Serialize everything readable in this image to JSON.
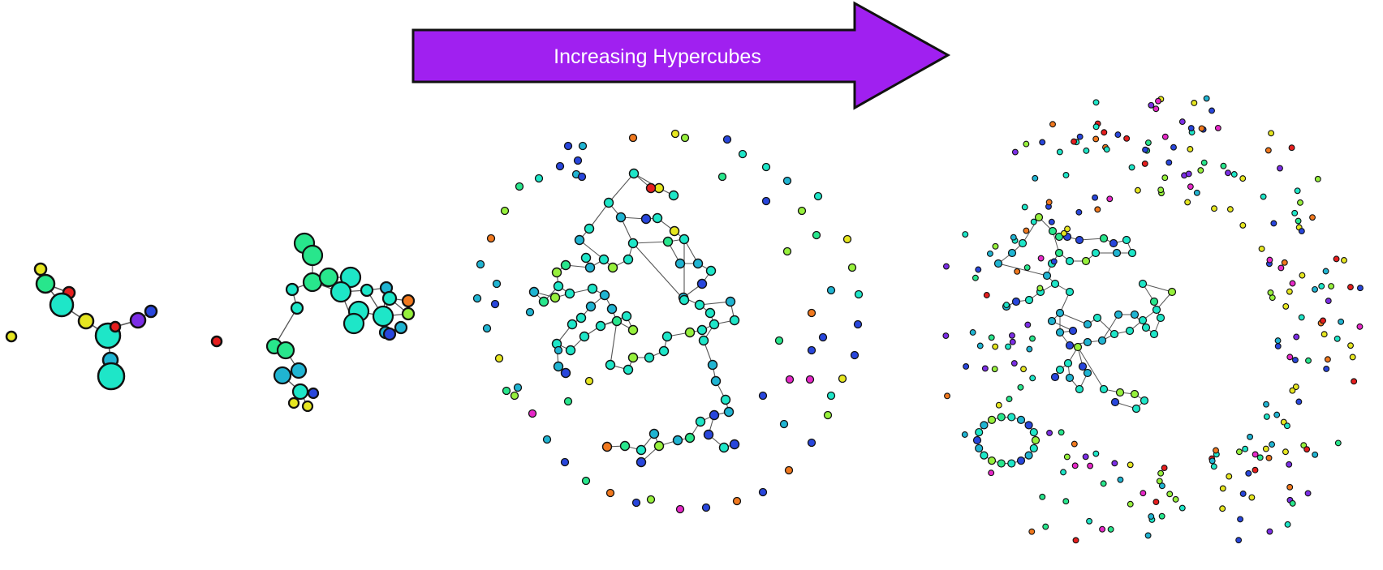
{
  "arrow": {
    "label": "Increasing Hypercubes",
    "fill": "#a020f0",
    "stroke": "#111111",
    "text_color": "#ffffff"
  },
  "palette": [
    "#1ee6c8",
    "#20b4d2",
    "#2846dc",
    "#7c2ee6",
    "#e6e620",
    "#96f03c",
    "#28e68c",
    "#e61e1e",
    "#f0781e",
    "#e628c8"
  ],
  "networks": [
    {
      "name": "network-1",
      "description_colors": [
        "#1ee6c8",
        "#e6e620",
        "#e61e1e",
        "#7c2ee6",
        "#2846dc"
      ]
    },
    {
      "name": "network-2",
      "description_colors": [
        "#1ee6c8",
        "#28e68c",
        "#2846dc",
        "#f0781e",
        "#96f03c",
        "#e6e620"
      ]
    },
    {
      "name": "network-3",
      "description_colors": [
        "#1ee6c8",
        "#20b4d2",
        "#2846dc",
        "#96f03c",
        "#e6e620",
        "#e61e1e"
      ]
    },
    {
      "name": "network-4",
      "description_colors": [
        "#1ee6c8",
        "#20b4d2",
        "#2846dc",
        "#96f03c",
        "#e6e620",
        "#e628c8",
        "#7c2ee6"
      ]
    }
  ]
}
